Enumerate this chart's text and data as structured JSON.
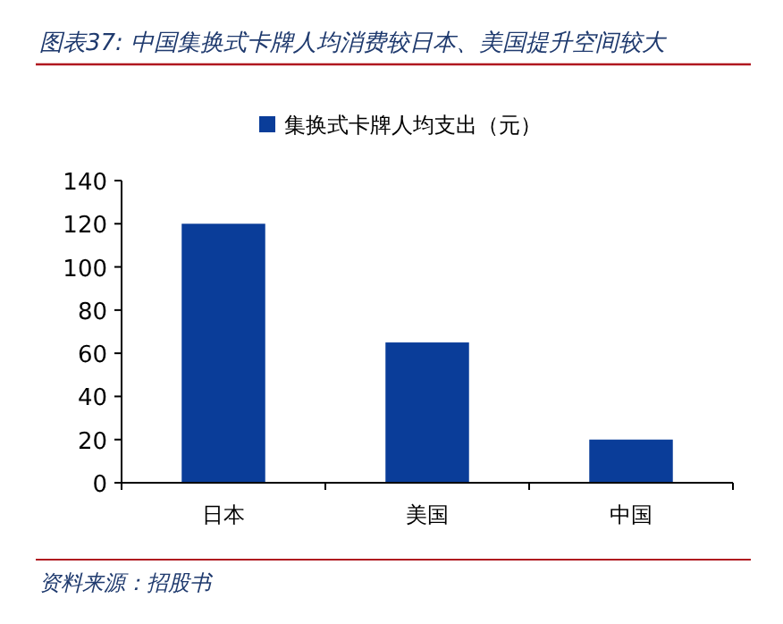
{
  "chart_data": {
    "type": "bar",
    "title": "图表37:  中国集换式卡牌人均消费较日本、美国提升空间较大",
    "categories": [
      "日本",
      "美国",
      "中国"
    ],
    "series": [
      {
        "name": "集换式卡牌人均支出（元）",
        "color": "#0a3d99",
        "values": [
          120,
          65,
          20
        ]
      }
    ],
    "ylim": [
      0,
      140
    ],
    "yticks": [
      0,
      20,
      40,
      60,
      80,
      100,
      120,
      140
    ],
    "legend": "top",
    "annotations": [
      "资料来源：招股书"
    ]
  }
}
